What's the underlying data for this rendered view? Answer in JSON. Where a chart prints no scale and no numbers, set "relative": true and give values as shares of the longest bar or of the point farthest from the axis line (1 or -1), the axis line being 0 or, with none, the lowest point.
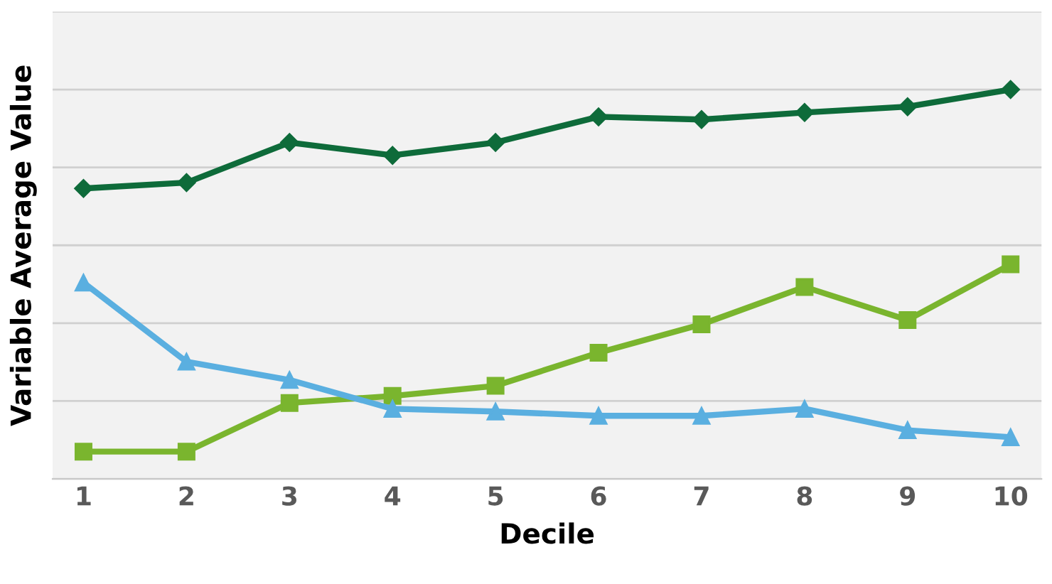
{
  "chart_data": {
    "type": "line",
    "relative": true,
    "xlabel": "Decile",
    "ylabel": "Variable Average Value",
    "grid": "y",
    "categories": [
      "1",
      "2",
      "3",
      "4",
      "5",
      "6",
      "7",
      "8",
      "9",
      "10"
    ],
    "series": [
      {
        "color": "#0e6b3a",
        "marker": "diamond",
        "values": [
          0.746,
          0.761,
          0.864,
          0.831,
          0.864,
          0.93,
          0.923,
          0.941,
          0.956,
          1
        ]
      },
      {
        "color": "#7ab52e",
        "marker": "square",
        "values": [
          0.07,
          0.07,
          0.195,
          0.213,
          0.239,
          0.324,
          0.397,
          0.493,
          0.408,
          0.551
        ]
      },
      {
        "color": "#5aafe0",
        "marker": "triangle",
        "values": [
          0.504,
          0.301,
          0.254,
          0.18,
          0.173,
          0.162,
          0.162,
          0.18,
          0.125,
          0.107
        ]
      }
    ]
  }
}
